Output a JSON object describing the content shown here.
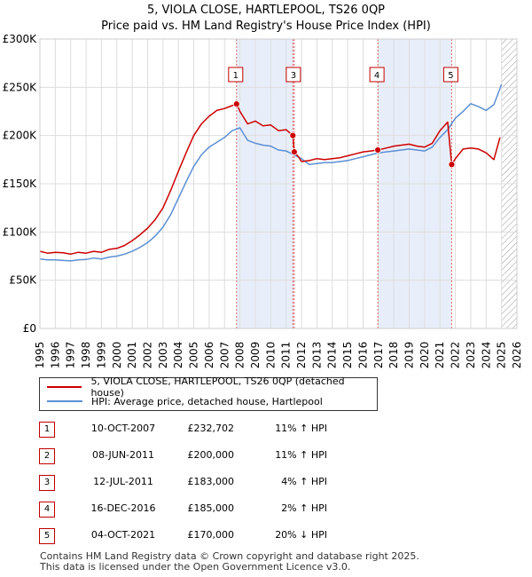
{
  "chart_data": {
    "type": "line",
    "title": "5, VIOLA CLOSE, HARTLEPOOL, TS26 0QP",
    "subtitle": "Price paid vs. HM Land Registry's House Price Index (HPI)",
    "xlim": [
      1995,
      2026
    ],
    "ylim": [
      0,
      300000
    ],
    "x_ticks": [
      "1995",
      "1996",
      "1997",
      "1998",
      "1999",
      "2000",
      "2001",
      "2002",
      "2003",
      "2004",
      "2005",
      "2006",
      "2007",
      "2008",
      "2009",
      "2010",
      "2011",
      "2012",
      "2013",
      "2014",
      "2015",
      "2016",
      "2017",
      "2018",
      "2019",
      "2020",
      "2021",
      "2022",
      "2023",
      "2024",
      "2025",
      "2026"
    ],
    "y_ticks": [
      {
        "value": 0,
        "label": "£0"
      },
      {
        "value": 50000,
        "label": "£50K"
      },
      {
        "value": 100000,
        "label": "£100K"
      },
      {
        "value": 150000,
        "label": "£150K"
      },
      {
        "value": 200000,
        "label": "£200K"
      },
      {
        "value": 250000,
        "label": "£250K"
      },
      {
        "value": 300000,
        "label": "£300K"
      }
    ],
    "grid": true,
    "shaded_ranges": [
      [
        2007.78,
        2011.53
      ],
      [
        2016.96,
        2021.76
      ]
    ],
    "future_hatch_from": 2025.0,
    "series": [
      {
        "name": "5, VIOLA CLOSE, HARTLEPOOL, TS26 0QP (detached house)",
        "color": "#cc0000",
        "x": [
          1995.0,
          1995.5,
          1996.0,
          1996.5,
          1997.0,
          1997.5,
          1998.0,
          1998.5,
          1999.0,
          1999.5,
          2000.0,
          2000.5,
          2001.0,
          2001.5,
          2002.0,
          2002.5,
          2003.0,
          2003.5,
          2004.0,
          2004.5,
          2005.0,
          2005.5,
          2006.0,
          2006.5,
          2007.0,
          2007.5,
          2007.78,
          2008.0,
          2008.5,
          2009.0,
          2009.5,
          2010.0,
          2010.5,
          2011.0,
          2011.44,
          2011.53,
          2011.8,
          2012.0,
          2012.5,
          2013.0,
          2013.5,
          2014.0,
          2014.5,
          2015.0,
          2015.5,
          2016.0,
          2016.5,
          2016.96,
          2017.5,
          2018.0,
          2018.5,
          2019.0,
          2019.5,
          2020.0,
          2020.5,
          2021.0,
          2021.5,
          2021.76,
          2022.0,
          2022.5,
          2023.0,
          2023.5,
          2024.0,
          2024.5,
          2024.9
        ],
        "y": [
          80000,
          78000,
          79000,
          78500,
          77000,
          79000,
          78000,
          80000,
          79000,
          82000,
          83000,
          86000,
          91000,
          97000,
          104000,
          113000,
          125000,
          143000,
          163000,
          182000,
          200000,
          212000,
          220000,
          226000,
          228000,
          231000,
          232702,
          225000,
          212000,
          215000,
          210000,
          211000,
          205000,
          206000,
          200000,
          183000,
          178000,
          173000,
          174000,
          176000,
          175000,
          176000,
          177000,
          179000,
          181000,
          183000,
          184000,
          185000,
          187000,
          189000,
          190000,
          191000,
          189000,
          188000,
          192000,
          205000,
          214000,
          170000,
          176000,
          186000,
          187000,
          186000,
          182000,
          175000,
          198000
        ]
      },
      {
        "name": "HPI: Average price, detached house, Hartlepool",
        "color": "#5b8fd4",
        "x": [
          1995.0,
          1995.5,
          1996.0,
          1996.5,
          1997.0,
          1997.5,
          1998.0,
          1998.5,
          1999.0,
          1999.5,
          2000.0,
          2000.5,
          2001.0,
          2001.5,
          2002.0,
          2002.5,
          2003.0,
          2003.5,
          2004.0,
          2004.5,
          2005.0,
          2005.5,
          2006.0,
          2006.5,
          2007.0,
          2007.5,
          2008.0,
          2008.5,
          2009.0,
          2009.5,
          2010.0,
          2010.5,
          2011.0,
          2011.5,
          2012.0,
          2012.5,
          2013.0,
          2013.5,
          2014.0,
          2014.5,
          2015.0,
          2015.5,
          2016.0,
          2016.5,
          2017.0,
          2017.5,
          2018.0,
          2018.5,
          2019.0,
          2019.5,
          2020.0,
          2020.5,
          2021.0,
          2021.5,
          2022.0,
          2022.5,
          2023.0,
          2023.5,
          2024.0,
          2024.5,
          2025.0
        ],
        "y": [
          72000,
          71000,
          71000,
          70500,
          70000,
          71000,
          71500,
          73000,
          72000,
          74000,
          75000,
          77000,
          80000,
          84000,
          89000,
          96000,
          105000,
          118000,
          135000,
          152000,
          168000,
          180000,
          188000,
          193000,
          198000,
          205000,
          208000,
          195000,
          192000,
          190000,
          189000,
          185000,
          184000,
          180000,
          176000,
          170000,
          171000,
          172000,
          172000,
          173000,
          174000,
          176000,
          178000,
          180000,
          182000,
          183000,
          184000,
          185000,
          186000,
          185000,
          184000,
          188000,
          198000,
          206000,
          218000,
          225000,
          233000,
          230000,
          226000,
          232000,
          253000
        ]
      }
    ],
    "sales": [
      {
        "label": "1",
        "x": 2007.78,
        "price": 232702
      },
      {
        "label": "2",
        "x": 2011.44,
        "price": 200000
      },
      {
        "label": "3",
        "x": 2011.53,
        "price": 183000
      },
      {
        "label": "4",
        "x": 2016.96,
        "price": 185000
      },
      {
        "label": "5",
        "x": 2021.76,
        "price": 170000
      }
    ],
    "markers_on_chart": [
      {
        "label": "1",
        "x": 2007.78
      },
      {
        "label": "3",
        "x": 2011.53
      },
      {
        "label": "4",
        "x": 2016.96
      },
      {
        "label": "5",
        "x": 2021.76
      }
    ]
  },
  "legend": {
    "property_label": "5, VIOLA CLOSE, HARTLEPOOL, TS26 0QP (detached house)",
    "hpi_label": "HPI: Average price, detached house, Hartlepool"
  },
  "transactions": [
    {
      "num": "1",
      "date": "10-OCT-2007",
      "price": "£232,702",
      "hpi": "11% ↑ HPI"
    },
    {
      "num": "2",
      "date": "08-JUN-2011",
      "price": "£200,000",
      "hpi": "11% ↑ HPI"
    },
    {
      "num": "3",
      "date": "12-JUL-2011",
      "price": "£183,000",
      "hpi": "4% ↑ HPI"
    },
    {
      "num": "4",
      "date": "16-DEC-2016",
      "price": "£185,000",
      "hpi": "2% ↑ HPI"
    },
    {
      "num": "5",
      "date": "04-OCT-2021",
      "price": "£170,000",
      "hpi": "20% ↓ HPI"
    }
  ],
  "footer": {
    "line1": "Contains HM Land Registry data © Crown copyright and database right 2025.",
    "line2": "This data is licensed under the Open Government Licence v3.0."
  }
}
